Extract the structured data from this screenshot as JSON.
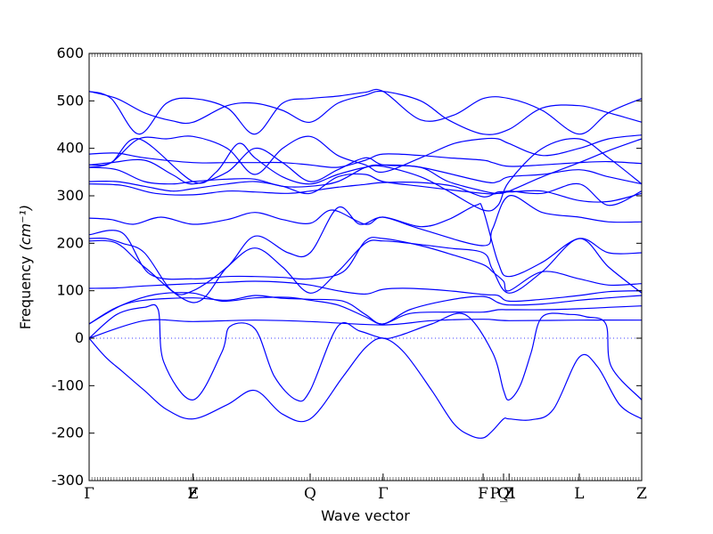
{
  "chart_data": {
    "type": "line",
    "title": "",
    "xlabel": "Wave vector",
    "ylabel": "Frequency",
    "ylabel_unit": "(cm⁻¹)",
    "ylim": [
      -300,
      600
    ],
    "xlim": [
      0,
      1.0
    ],
    "yticks": [
      -300,
      -200,
      -100,
      0,
      100,
      200,
      300,
      400,
      500,
      600
    ],
    "grid": false,
    "line_color": "#0000ff",
    "zero_line_color": "#0000ff",
    "kpoints": [
      {
        "label": "Γ",
        "x": 0.0
      },
      {
        "label": "Z",
        "x": 0.188
      },
      {
        "label": "F",
        "x": 0.188
      },
      {
        "label": "Q",
        "x": 0.4
      },
      {
        "label": "Γ",
        "x": 0.532
      },
      {
        "label": "F",
        "x": 0.713
      },
      {
        "label": "P_1",
        "x": 0.75
      },
      {
        "label": "Q",
        "x": 0.75
      },
      {
        "label": "Z",
        "x": 0.76
      },
      {
        "label": "L",
        "x": 0.887
      },
      {
        "label": "Z",
        "x": 1.0
      }
    ],
    "series": [
      {
        "x": [
          0,
          0.03,
          0.06,
          0.1,
          0.14,
          0.188,
          0.25,
          0.3,
          0.35,
          0.4,
          0.46,
          0.5,
          0.532,
          0.57,
          0.62,
          0.66,
          0.69,
          0.713,
          0.73,
          0.75,
          0.76,
          0.8,
          0.84,
          0.887,
          0.92,
          0.96,
          1.0
        ],
        "y": [
          0,
          -40,
          -70,
          -110,
          -150,
          -170,
          -140,
          -110,
          -160,
          -170,
          -80,
          -20,
          0,
          -30,
          -110,
          -180,
          -205,
          -210,
          -195,
          -170,
          -170,
          -172,
          -150,
          -40,
          -60,
          -140,
          -170
        ]
      },
      {
        "x": [
          0,
          0.05,
          0.1,
          0.125,
          0.135,
          0.188,
          0.24,
          0.255,
          0.3,
          0.335,
          0.375,
          0.4,
          0.45,
          0.49,
          0.532,
          0.56,
          0.62,
          0.68,
          0.73,
          0.75,
          0.76,
          0.78,
          0.8,
          0.82,
          0.87,
          0.9,
          0.935,
          0.945,
          1.0
        ],
        "y": [
          0,
          50,
          65,
          60,
          -50,
          -130,
          -30,
          25,
          20,
          -80,
          -130,
          -110,
          25,
          15,
          0,
          5,
          30,
          50,
          -30,
          -110,
          -130,
          -100,
          -30,
          45,
          50,
          45,
          30,
          -60,
          -130
        ]
      },
      {
        "x": [
          0,
          0.1,
          0.188,
          0.3,
          0.4,
          0.532,
          0.62,
          0.713,
          0.76,
          0.887,
          1.0
        ],
        "y": [
          0,
          37,
          35,
          38,
          35,
          28,
          37,
          40,
          37,
          38,
          38
        ]
      },
      {
        "x": [
          0,
          0.06,
          0.12,
          0.188,
          0.24,
          0.3,
          0.36,
          0.4,
          0.45,
          0.5,
          0.532,
          0.58,
          0.65,
          0.713,
          0.74,
          0.76,
          0.82,
          0.887,
          0.94,
          1.0
        ],
        "y": [
          30,
          70,
          92,
          95,
          78,
          85,
          86,
          80,
          70,
          45,
          30,
          52,
          55,
          55,
          60,
          60,
          60,
          62,
          65,
          68
        ]
      },
      {
        "x": [
          0,
          0.05,
          0.1,
          0.188,
          0.25,
          0.3,
          0.35,
          0.4,
          0.46,
          0.5,
          0.532,
          0.58,
          0.65,
          0.713,
          0.74,
          0.76,
          0.82,
          0.887,
          0.94,
          1.0
        ],
        "y": [
          30,
          65,
          80,
          85,
          80,
          90,
          84,
          82,
          78,
          50,
          30,
          60,
          80,
          88,
          75,
          70,
          72,
          80,
          85,
          90
        ]
      },
      {
        "x": [
          0,
          0.05,
          0.1,
          0.188,
          0.25,
          0.3,
          0.35,
          0.4,
          0.45,
          0.5,
          0.532,
          0.58,
          0.65,
          0.713,
          0.74,
          0.76,
          0.82,
          0.887,
          0.94,
          1.0
        ],
        "y": [
          105,
          106,
          110,
          115,
          118,
          120,
          118,
          112,
          100,
          93,
          103,
          105,
          100,
          92,
          90,
          78,
          82,
          90,
          98,
          100
        ]
      },
      {
        "x": [
          0,
          0.05,
          0.1,
          0.19,
          0.25,
          0.3,
          0.35,
          0.4,
          0.45,
          0.5,
          0.532,
          0.58,
          0.65,
          0.713,
          0.73,
          0.76,
          0.82,
          0.887,
          0.94,
          1.0
        ],
        "y": [
          205,
          200,
          150,
          75,
          150,
          190,
          150,
          95,
          140,
          200,
          205,
          200,
          190,
          180,
          145,
          95,
          140,
          210,
          150,
          95
        ]
      },
      {
        "x": [
          0,
          0.06,
          0.11,
          0.188,
          0.25,
          0.3,
          0.35,
          0.4,
          0.46,
          0.5,
          0.532,
          0.6,
          0.66,
          0.713,
          0.73,
          0.75,
          0.76,
          0.82,
          0.887,
          0.94,
          1.0
        ],
        "y": [
          218,
          222,
          135,
          125,
          130,
          130,
          128,
          125,
          140,
          205,
          210,
          195,
          175,
          155,
          140,
          120,
          100,
          140,
          125,
          112,
          115
        ]
      },
      {
        "x": [
          0,
          0.03,
          0.06,
          0.1,
          0.15,
          0.188,
          0.25,
          0.3,
          0.36,
          0.4,
          0.45,
          0.49,
          0.532,
          0.6,
          0.65,
          0.7,
          0.713,
          0.74,
          0.76,
          0.82,
          0.887,
          0.94,
          1.0
        ],
        "y": [
          210,
          210,
          200,
          180,
          100,
          100,
          150,
          215,
          180,
          180,
          275,
          240,
          255,
          235,
          250,
          280,
          270,
          160,
          130,
          160,
          210,
          180,
          180
        ]
      },
      {
        "x": [
          0,
          0.04,
          0.08,
          0.13,
          0.188,
          0.25,
          0.3,
          0.35,
          0.4,
          0.44,
          0.5,
          0.532,
          0.6,
          0.713,
          0.73,
          0.76,
          0.82,
          0.887,
          0.94,
          1.0
        ],
        "y": [
          253,
          250,
          240,
          255,
          240,
          250,
          265,
          250,
          242,
          270,
          240,
          255,
          230,
          195,
          230,
          300,
          265,
          255,
          245,
          245
        ]
      },
      {
        "x": [
          0,
          0.06,
          0.12,
          0.188,
          0.25,
          0.3,
          0.36,
          0.4,
          0.45,
          0.5,
          0.532,
          0.6,
          0.66,
          0.713,
          0.74,
          0.76,
          0.82,
          0.887,
          0.94,
          1.0
        ],
        "y": [
          325,
          322,
          305,
          302,
          310,
          308,
          305,
          310,
          318,
          324,
          328,
          328,
          320,
          298,
          308,
          308,
          310,
          290,
          288,
          305
        ]
      },
      {
        "x": [
          0,
          0.05,
          0.1,
          0.15,
          0.188,
          0.25,
          0.3,
          0.35,
          0.4,
          0.45,
          0.5,
          0.532,
          0.6,
          0.713,
          0.74,
          0.76,
          0.82,
          0.887,
          0.94,
          1.0
        ],
        "y": [
          330,
          330,
          320,
          310,
          315,
          325,
          330,
          320,
          305,
          340,
          345,
          330,
          320,
          305,
          305,
          310,
          305,
          325,
          280,
          310
        ]
      },
      {
        "x": [
          0,
          0.05,
          0.1,
          0.15,
          0.188,
          0.25,
          0.3,
          0.35,
          0.4,
          0.45,
          0.5,
          0.532,
          0.6,
          0.713,
          0.74,
          0.76,
          0.82,
          0.887,
          0.94,
          1.0
        ],
        "y": [
          360,
          355,
          330,
          325,
          330,
          335,
          335,
          320,
          320,
          330,
          360,
          365,
          360,
          330,
          330,
          340,
          345,
          355,
          340,
          325
        ]
      },
      {
        "x": [
          0,
          0.04,
          0.1,
          0.15,
          0.188,
          0.25,
          0.3,
          0.35,
          0.4,
          0.45,
          0.5,
          0.532,
          0.6,
          0.65,
          0.713,
          0.74,
          0.76,
          0.82,
          0.887,
          0.94,
          1.0
        ],
        "y": [
          365,
          370,
          375,
          345,
          325,
          350,
          400,
          370,
          330,
          355,
          380,
          365,
          360,
          330,
          310,
          305,
          310,
          340,
          370,
          395,
          420
        ]
      },
      {
        "x": [
          0,
          0.05,
          0.1,
          0.188,
          0.25,
          0.3,
          0.35,
          0.4,
          0.45,
          0.5,
          0.532,
          0.6,
          0.65,
          0.713,
          0.73,
          0.76,
          0.82,
          0.887,
          0.94,
          1.0
        ],
        "y": [
          388,
          390,
          380,
          370,
          370,
          370,
          370,
          365,
          360,
          375,
          388,
          385,
          380,
          375,
          370,
          362,
          365,
          370,
          372,
          368
        ]
      },
      {
        "x": [
          0,
          0.04,
          0.09,
          0.188,
          0.23,
          0.27,
          0.3,
          0.35,
          0.4,
          0.45,
          0.5,
          0.532,
          0.6,
          0.65,
          0.713,
          0.74,
          0.76,
          0.82,
          0.887,
          0.94,
          1.0
        ],
        "y": [
          365,
          370,
          420,
          330,
          350,
          410,
          380,
          340,
          325,
          345,
          360,
          362,
          340,
          310,
          270,
          280,
          330,
          400,
          420,
          380,
          325
        ]
      },
      {
        "x": [
          0,
          0.04,
          0.09,
          0.14,
          0.188,
          0.25,
          0.3,
          0.35,
          0.4,
          0.45,
          0.5,
          0.532,
          0.6,
          0.66,
          0.713,
          0.74,
          0.76,
          0.82,
          0.887,
          0.94,
          1.0
        ],
        "y": [
          360,
          370,
          420,
          420,
          425,
          400,
          345,
          400,
          425,
          385,
          365,
          350,
          380,
          410,
          420,
          420,
          410,
          385,
          400,
          420,
          428
        ]
      },
      {
        "x": [
          0,
          0.04,
          0.09,
          0.14,
          0.188,
          0.25,
          0.3,
          0.35,
          0.4,
          0.45,
          0.5,
          0.532,
          0.6,
          0.66,
          0.713,
          0.76,
          0.82,
          0.887,
          0.94,
          1.0
        ],
        "y": [
          520,
          505,
          430,
          495,
          505,
          485,
          430,
          495,
          505,
          510,
          518,
          520,
          460,
          470,
          505,
          505,
          480,
          430,
          475,
          505
        ]
      },
      {
        "x": [
          0,
          0.05,
          0.1,
          0.15,
          0.188,
          0.25,
          0.3,
          0.35,
          0.4,
          0.45,
          0.5,
          0.532,
          0.6,
          0.65,
          0.713,
          0.76,
          0.82,
          0.887,
          0.94,
          1.0
        ],
        "y": [
          520,
          505,
          475,
          458,
          455,
          490,
          495,
          480,
          455,
          495,
          512,
          520,
          500,
          460,
          430,
          440,
          485,
          490,
          475,
          455
        ]
      }
    ]
  }
}
